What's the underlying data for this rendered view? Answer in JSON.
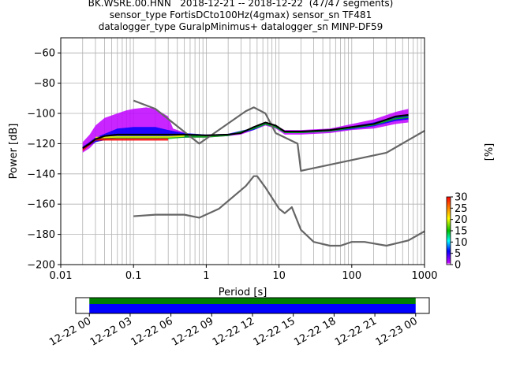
{
  "chart_data": [
    {
      "type": "heatmap",
      "title_lines": [
        "BK.WSRE.00.HNN   2018-12-21 -- 2018-12-22  (47/47 segments)",
        "sensor_type FortisDCto100Hz(4gmax) sensor_sn TF481",
        "datalogger_type GuralpMinimus+ datalogger_sn MINP-DF59"
      ],
      "xlabel": "Period [s]",
      "ylabel": "Power [dB]",
      "x_scale": "log",
      "xlim": [
        0.01,
        1000
      ],
      "ylim": [
        -200,
        -50
      ],
      "x_ticks": [
        0.01,
        0.1,
        1,
        10,
        100,
        1000
      ],
      "x_tick_labels": [
        "0.01",
        "0.1",
        "1",
        "10",
        "100",
        "1000"
      ],
      "y_ticks": [
        -200,
        -180,
        -160,
        -140,
        -120,
        -100,
        -80,
        -60
      ],
      "grid": true,
      "colorbar": {
        "label": "[%]",
        "range": [
          0,
          30
        ],
        "ticks": [
          "0",
          "5",
          "10",
          "15",
          "20",
          "25",
          "30"
        ],
        "colors": [
          "#ffffff",
          "#bf00ff",
          "#0000ff",
          "#00ffff",
          "#00c000",
          "#ffff00",
          "#ff8000",
          "#ff0000"
        ]
      },
      "series": [
        {
          "type": "line",
          "color": "#666666",
          "x": [
            0.1,
            0.2,
            0.8,
            3.5,
            4.5,
            6.5,
            9,
            18,
            20,
            300,
            1000
          ],
          "y": [
            -91.5,
            -97,
            -120,
            -98.5,
            -96,
            -100,
            -113,
            -120,
            -138,
            -126,
            -111.5
          ]
        },
        {
          "type": "line",
          "color": "#666666",
          "x": [
            0.1,
            0.2,
            0.5,
            0.8,
            1.5,
            3.5,
            4.5,
            5,
            6.5,
            10,
            12,
            15,
            20,
            30,
            50,
            70,
            100,
            150,
            300,
            600,
            1000
          ],
          "y": [
            -168,
            -167,
            -167,
            -169,
            -163,
            -148,
            -141.5,
            -141.5,
            -149,
            -163,
            -166,
            -162,
            -177,
            -185,
            -187.5,
            -187.5,
            -185,
            -185,
            -187.5,
            -184,
            -178
          ]
        },
        {
          "type": "line",
          "color": "#000000",
          "x": [
            0.02,
            0.025,
            0.03,
            0.04,
            0.06,
            0.1,
            0.2,
            0.3,
            0.5,
            1,
            2,
            3,
            4.5,
            6.5,
            9,
            12,
            20,
            50,
            100,
            200,
            400,
            600
          ],
          "y": [
            -123,
            -120,
            -117,
            -115,
            -114,
            -114,
            -114,
            -114,
            -114,
            -114.5,
            -114,
            -113,
            -109,
            -106,
            -108,
            -112,
            -112,
            -111,
            -109,
            -107,
            -102,
            -101
          ]
        }
      ],
      "heat_bands": [
        {
          "color": "#bf00ff",
          "x": [
            0.02,
            0.025,
            0.03,
            0.04,
            0.06,
            0.08,
            0.1,
            0.15,
            0.2,
            0.3,
            0.35,
            0.4,
            0.6,
            1,
            2,
            3,
            4.5,
            6.5,
            9,
            12,
            20,
            50,
            100,
            200,
            400,
            600
          ],
          "y_top": [
            -119,
            -114,
            -108,
            -103,
            -100,
            -98,
            -97,
            -96,
            -97,
            -102,
            -110,
            -111,
            -114,
            -114,
            -114,
            -113,
            -109,
            -106,
            -108,
            -111,
            -111,
            -110,
            -107,
            -104,
            -99,
            -97
          ],
          "y_bottom": [
            -126,
            -123,
            -119,
            -117,
            -116,
            -116,
            -116,
            -116,
            -116,
            -116,
            -116,
            -116,
            -116,
            -116,
            -115,
            -114,
            -111,
            -108,
            -110,
            -114,
            -114,
            -113,
            -111,
            -110,
            -107,
            -106
          ]
        },
        {
          "color": "#0000ff",
          "x": [
            0.02,
            0.03,
            0.06,
            0.1,
            0.2,
            0.3,
            0.5,
            1,
            2,
            4.5,
            6.5,
            9,
            12,
            20,
            50,
            100,
            200,
            400,
            600
          ],
          "y_top": [
            -122,
            -116,
            -110,
            -109,
            -109,
            -111,
            -113,
            -114,
            -113.5,
            -109.5,
            -106.5,
            -108.5,
            -112,
            -112,
            -111,
            -108.5,
            -106,
            -102,
            -101
          ],
          "y_bottom": [
            -124,
            -119,
            -116,
            -116,
            -116,
            -116,
            -116,
            -115,
            -115,
            -111,
            -107.5,
            -109.5,
            -113,
            -113,
            -112,
            -110.5,
            -108.5,
            -105,
            -104
          ]
        },
        {
          "color": "#00c000",
          "x": [
            0.03,
            0.06,
            0.1,
            0.2,
            0.3,
            0.5,
            1,
            2,
            4.5,
            6.5,
            9,
            12,
            20,
            50,
            100,
            200,
            400,
            600
          ],
          "y_top": [
            -116,
            -115,
            -115,
            -115,
            -115,
            -114.5,
            -114.5,
            -114,
            -109.5,
            -106.5,
            -108.5,
            -112,
            -112,
            -111,
            -109,
            -107,
            -103,
            -102
          ],
          "y_bottom": [
            -118,
            -117,
            -117,
            -117,
            -117,
            -116,
            -116,
            -115,
            -110.5,
            -107.5,
            -109.5,
            -113,
            -113,
            -112,
            -110,
            -108,
            -104,
            -103
          ]
        },
        {
          "color": "#ffff00",
          "x": [
            0.03,
            0.06,
            0.1,
            0.2,
            0.3,
            0.5
          ],
          "y_top": [
            -115.5,
            -115,
            -115,
            -115,
            -115,
            -114.5
          ],
          "y_bottom": [
            -116.5,
            -116,
            -116,
            -116,
            -116,
            -115.5
          ]
        },
        {
          "color": "#ff0000",
          "x": [
            0.02,
            0.03,
            0.06,
            0.1,
            0.2,
            0.3
          ],
          "y_top": [
            -122.5,
            -116.5,
            -116.5,
            -116.5,
            -116.5,
            -116.5
          ],
          "y_bottom": [
            -125,
            -118,
            -118,
            -118,
            -118,
            -118
          ]
        }
      ]
    },
    {
      "type": "timeline",
      "xlim": [
        "2018-12-21T23:00",
        "2018-12-23T01:00"
      ],
      "tick_labels": [
        "12-22 00",
        "12-22 03",
        "12-22 06",
        "12-22 09",
        "12-22 12",
        "12-22 15",
        "12-22 18",
        "12-22 21",
        "12-23 00"
      ],
      "bars": [
        {
          "color": "#008000",
          "start": "2018-12-22T00:00",
          "end": "2018-12-23T00:00"
        },
        {
          "color": "#0000ff",
          "start": "2018-12-22T00:00",
          "end": "2018-12-23T00:00"
        }
      ]
    }
  ]
}
